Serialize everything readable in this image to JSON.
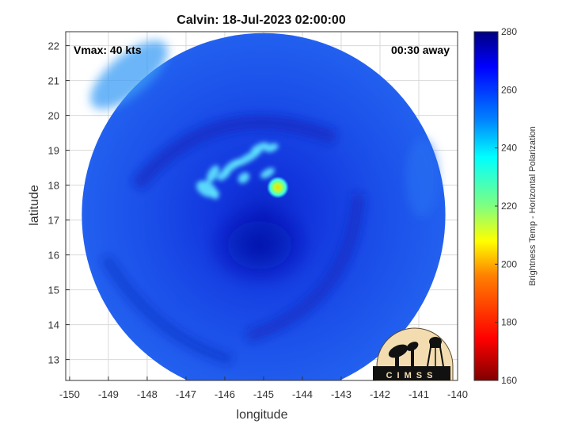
{
  "title": "Calvin: 18-Jul-2023 02:00:00",
  "vmax_label": "Vmax: 40 kts",
  "time_label": "00:30 away",
  "xlabel": "longitude",
  "ylabel": "latitude",
  "colorbar_label": "Brightness Temp - Horizontal Polarization",
  "logo_text": "CIMSS",
  "x_ticks": [
    -150,
    -149,
    -148,
    -147,
    -146,
    -145,
    -144,
    -143,
    -142,
    -141,
    -140
  ],
  "y_ticks": [
    13,
    14,
    15,
    16,
    17,
    18,
    19,
    20,
    21,
    22
  ],
  "xlim": [
    -150.1,
    -140
  ],
  "ylim": [
    12.4,
    22.4
  ],
  "colorbar_ticks": [
    160,
    180,
    200,
    220,
    240,
    260,
    280
  ],
  "colorbar_range": [
    160,
    280
  ],
  "swath": {
    "center_lon": -145.0,
    "center_lat": 17.3,
    "radius_deg": 4.4
  },
  "colormap": [
    "#800000",
    "#ff0000",
    "#ff8000",
    "#ffff00",
    "#80ff80",
    "#00ffff",
    "#0080ff",
    "#0000ff",
    "#000080"
  ]
}
